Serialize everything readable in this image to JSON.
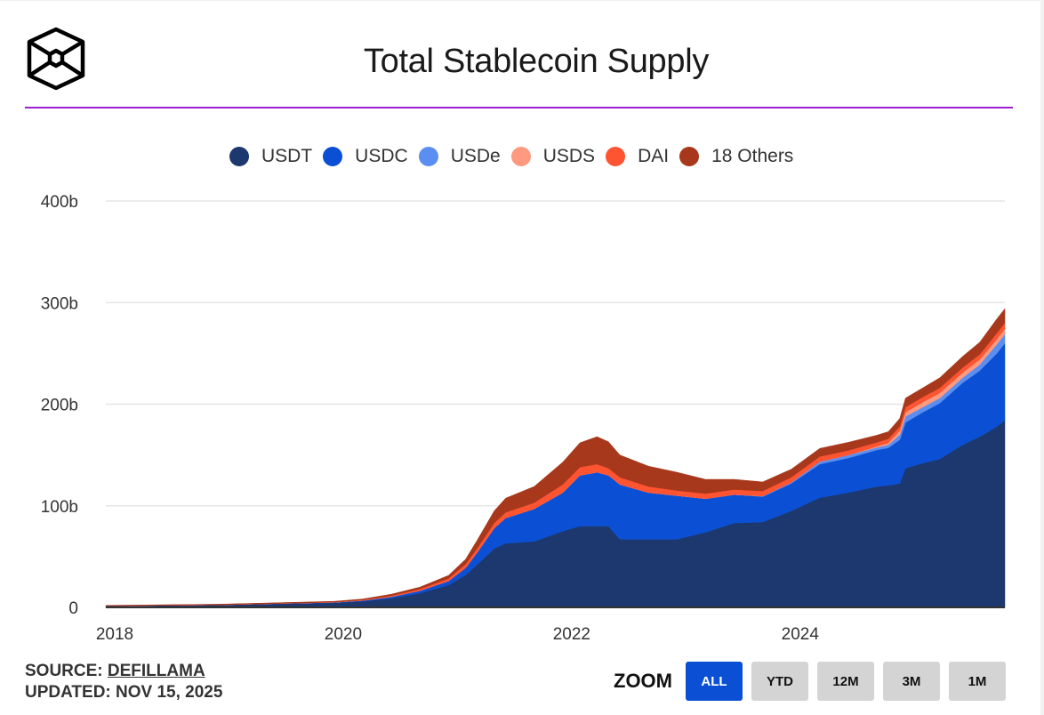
{
  "header": {
    "title": "Total Stablecoin Supply"
  },
  "footer": {
    "source_prefix": "SOURCE: ",
    "source_link": "DEFILLAMA",
    "updated": "UPDATED: NOV 15, 2025"
  },
  "zoom": {
    "label": "ZOOM",
    "buttons": [
      {
        "label": "ALL",
        "active": true
      },
      {
        "label": "YTD",
        "active": false
      },
      {
        "label": "12M",
        "active": false
      },
      {
        "label": "3M",
        "active": false
      },
      {
        "label": "1M",
        "active": false
      }
    ]
  },
  "chart_data": {
    "type": "area",
    "stacked": true,
    "title": "Total Stablecoin Supply",
    "xlabel": "",
    "ylabel": "",
    "xlim": [
      2018.0,
      2025.87
    ],
    "ylim": [
      0,
      400
    ],
    "y_unit": "b",
    "y_ticks": [
      0,
      100,
      200,
      300,
      400
    ],
    "y_tick_labels": [
      "0",
      "100b",
      "200b",
      "300b",
      "400b"
    ],
    "x_ticks": [
      2018,
      2020,
      2022,
      2024
    ],
    "x_tick_labels": [
      "2018",
      "2020",
      "2022",
      "2024"
    ],
    "grid": true,
    "legend_position": "top-center",
    "x": [
      2018.0,
      2018.5,
      2019.0,
      2019.5,
      2020.0,
      2020.25,
      2020.5,
      2020.75,
      2021.0,
      2021.15,
      2021.25,
      2021.4,
      2021.5,
      2021.75,
      2022.0,
      2022.15,
      2022.3,
      2022.4,
      2022.5,
      2022.75,
      2023.0,
      2023.25,
      2023.5,
      2023.75,
      2024.0,
      2024.25,
      2024.5,
      2024.75,
      2024.85,
      2024.95,
      2025.0,
      2025.15,
      2025.3,
      2025.5,
      2025.65,
      2025.8,
      2025.87
    ],
    "series": [
      {
        "name": "USDT",
        "color": "#1c386e",
        "values": [
          1.5,
          2,
          2.5,
          3.5,
          4.5,
          6,
          9,
          14,
          22,
          32,
          42,
          58,
          63,
          65,
          75,
          80,
          80,
          80,
          67,
          67,
          67,
          74,
          83,
          84,
          95,
          108,
          113,
          119,
          120,
          122,
          137,
          142,
          146,
          160,
          168,
          178,
          184
        ]
      },
      {
        "name": "USDC",
        "color": "#0b50d4",
        "values": [
          0,
          0,
          0,
          0.3,
          0.5,
          0.8,
          1.5,
          2.5,
          4,
          7,
          12,
          20,
          25,
          32,
          38,
          50,
          53,
          50,
          54,
          46,
          43,
          33,
          28,
          25,
          27,
          33,
          34,
          36,
          37,
          43,
          45,
          50,
          55,
          61,
          65,
          72,
          76
        ]
      },
      {
        "name": "USDe",
        "color": "#5a8ef0",
        "values": [
          0,
          0,
          0,
          0,
          0,
          0,
          0,
          0,
          0,
          0,
          0,
          0,
          0,
          0,
          0,
          0,
          0,
          0,
          0,
          0,
          0,
          0,
          0,
          0.5,
          1,
          2.5,
          3,
          2.5,
          3,
          5,
          6,
          5,
          5,
          5,
          6,
          9,
          9
        ]
      },
      {
        "name": "USDS",
        "color": "#ff9a80",
        "values": [
          0,
          0,
          0,
          0,
          0,
          0,
          0,
          0,
          0,
          0,
          0,
          0,
          0,
          0,
          0,
          0,
          0,
          0,
          0,
          0,
          0,
          0,
          0,
          0,
          0,
          0,
          0,
          1,
          2,
          4,
          4,
          5,
          5,
          5,
          5,
          5,
          5
        ]
      },
      {
        "name": "DAI",
        "color": "#ff5431",
        "values": [
          0.1,
          0.1,
          0.1,
          0.1,
          0.2,
          0.5,
          1,
          1.5,
          2.5,
          3.5,
          4,
          5,
          5.5,
          6,
          8,
          8,
          8,
          7,
          7,
          6,
          5,
          5,
          5,
          5,
          5,
          5,
          4.5,
          4,
          4,
          4,
          5,
          5,
          5,
          5,
          5,
          6,
          6
        ]
      },
      {
        "name": "18 Others",
        "color": "#a8381c",
        "values": [
          0.4,
          0.5,
          0.6,
          0.7,
          0.8,
          1,
          1.5,
          2,
          3,
          5,
          8,
          12,
          14,
          16,
          22,
          24,
          27,
          26,
          22,
          20,
          18,
          14,
          10,
          9,
          8,
          8,
          8,
          7,
          7,
          8,
          9,
          9,
          10,
          11,
          12,
          14,
          14
        ]
      }
    ]
  }
}
